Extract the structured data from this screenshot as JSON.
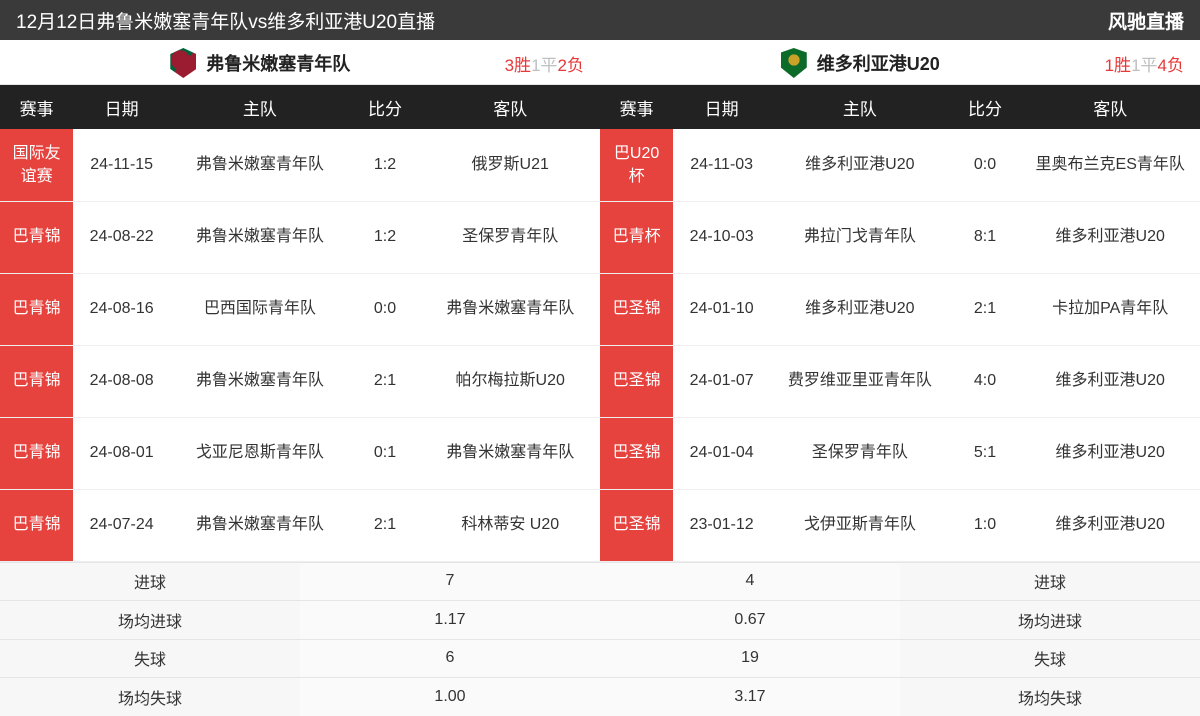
{
  "colors": {
    "header_bg": "#3a3a3a",
    "thead_bg": "#222222",
    "comp_bg": "#e6433f",
    "win": "#e63a3a",
    "draw": "#bfbfbf",
    "loss": "#e63a3a",
    "text": "#333333",
    "border": "#e5e5e5",
    "summary_bg": "#f7f7f7"
  },
  "header": {
    "title": "12月12日弗鲁米嫩塞青年队vs维多利亚港U20直播",
    "brand": "风驰直播"
  },
  "columns": {
    "comp": "赛事",
    "date": "日期",
    "home": "主队",
    "score": "比分",
    "away": "客队"
  },
  "left": {
    "team": "弗鲁米嫩塞青年队",
    "record": {
      "win": "3胜",
      "draw": "1平",
      "loss": "2负"
    },
    "matches": [
      {
        "comp": "国际友谊赛",
        "date": "24-11-15",
        "home": "弗鲁米嫩塞青年队",
        "score": "1:2",
        "away": "俄罗斯U21"
      },
      {
        "comp": "巴青锦",
        "date": "24-08-22",
        "home": "弗鲁米嫩塞青年队",
        "score": "1:2",
        "away": "圣保罗青年队"
      },
      {
        "comp": "巴青锦",
        "date": "24-08-16",
        "home": "巴西国际青年队",
        "score": "0:0",
        "away": "弗鲁米嫩塞青年队"
      },
      {
        "comp": "巴青锦",
        "date": "24-08-08",
        "home": "弗鲁米嫩塞青年队",
        "score": "2:1",
        "away": "帕尔梅拉斯U20"
      },
      {
        "comp": "巴青锦",
        "date": "24-08-01",
        "home": "戈亚尼恩斯青年队",
        "score": "0:1",
        "away": "弗鲁米嫩塞青年队"
      },
      {
        "comp": "巴青锦",
        "date": "24-07-24",
        "home": "弗鲁米嫩塞青年队",
        "score": "2:1",
        "away": "科林蒂安 U20"
      }
    ],
    "summary": {
      "goals_label": "进球",
      "goals_value": "7",
      "avg_goals_label": "场均进球",
      "avg_goals_value": "1.17",
      "conceded_label": "失球",
      "conceded_value": "6",
      "avg_conceded_label": "场均失球",
      "avg_conceded_value": "1.00"
    }
  },
  "right": {
    "team": "维多利亚港U20",
    "record": {
      "win": "1胜",
      "draw": "1平",
      "loss": "4负"
    },
    "matches": [
      {
        "comp": "巴U20杯",
        "date": "24-11-03",
        "home": "维多利亚港U20",
        "score": "0:0",
        "away": "里奥布兰克ES青年队"
      },
      {
        "comp": "巴青杯",
        "date": "24-10-03",
        "home": "弗拉门戈青年队",
        "score": "8:1",
        "away": "维多利亚港U20"
      },
      {
        "comp": "巴圣锦",
        "date": "24-01-10",
        "home": "维多利亚港U20",
        "score": "2:1",
        "away": "卡拉加PA青年队"
      },
      {
        "comp": "巴圣锦",
        "date": "24-01-07",
        "home": "费罗维亚里亚青年队",
        "score": "4:0",
        "away": "维多利亚港U20"
      },
      {
        "comp": "巴圣锦",
        "date": "24-01-04",
        "home": "圣保罗青年队",
        "score": "5:1",
        "away": "维多利亚港U20"
      },
      {
        "comp": "巴圣锦",
        "date": "23-01-12",
        "home": "戈伊亚斯青年队",
        "score": "1:0",
        "away": "维多利亚港U20"
      }
    ],
    "summary": {
      "goals_label": "进球",
      "goals_value": "4",
      "avg_goals_label": "场均进球",
      "avg_goals_value": "0.67",
      "conceded_label": "失球",
      "conceded_value": "19",
      "avg_conceded_label": "场均失球",
      "avg_conceded_value": "3.17"
    }
  }
}
